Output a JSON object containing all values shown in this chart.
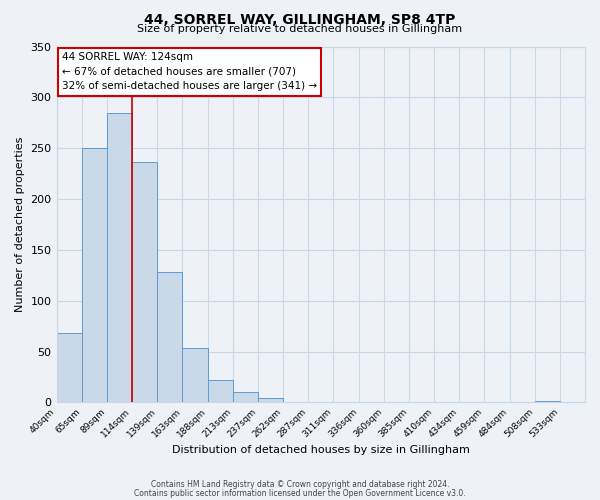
{
  "title": "44, SORREL WAY, GILLINGHAM, SP8 4TP",
  "subtitle": "Size of property relative to detached houses in Gillingham",
  "xlabel": "Distribution of detached houses by size in Gillingham",
  "ylabel": "Number of detached properties",
  "bin_labels": [
    "40sqm",
    "65sqm",
    "89sqm",
    "114sqm",
    "139sqm",
    "163sqm",
    "188sqm",
    "213sqm",
    "237sqm",
    "262sqm",
    "287sqm",
    "311sqm",
    "336sqm",
    "360sqm",
    "385sqm",
    "410sqm",
    "434sqm",
    "459sqm",
    "484sqm",
    "508sqm",
    "533sqm"
  ],
  "bar_heights": [
    68,
    250,
    285,
    236,
    128,
    54,
    22,
    10,
    4,
    0,
    0,
    0,
    0,
    0,
    0,
    0,
    0,
    0,
    0,
    1,
    0
  ],
  "bar_color": "#c9d9e8",
  "bar_edge_color": "#5b9bd5",
  "vline_x": 3,
  "vline_color": "#cc0000",
  "annotation_title": "44 SORREL WAY: 124sqm",
  "annotation_line1": "← 67% of detached houses are smaller (707)",
  "annotation_line2": "32% of semi-detached houses are larger (341) →",
  "annotation_box_color": "#ffffff",
  "annotation_box_edge": "#cc0000",
  "ylim": [
    0,
    350
  ],
  "yticks": [
    0,
    50,
    100,
    150,
    200,
    250,
    300,
    350
  ],
  "footer1": "Contains HM Land Registry data © Crown copyright and database right 2024.",
  "footer2": "Contains public sector information licensed under the Open Government Licence v3.0.",
  "bg_color": "#eef2f7",
  "grid_color": "#c8d8e8"
}
